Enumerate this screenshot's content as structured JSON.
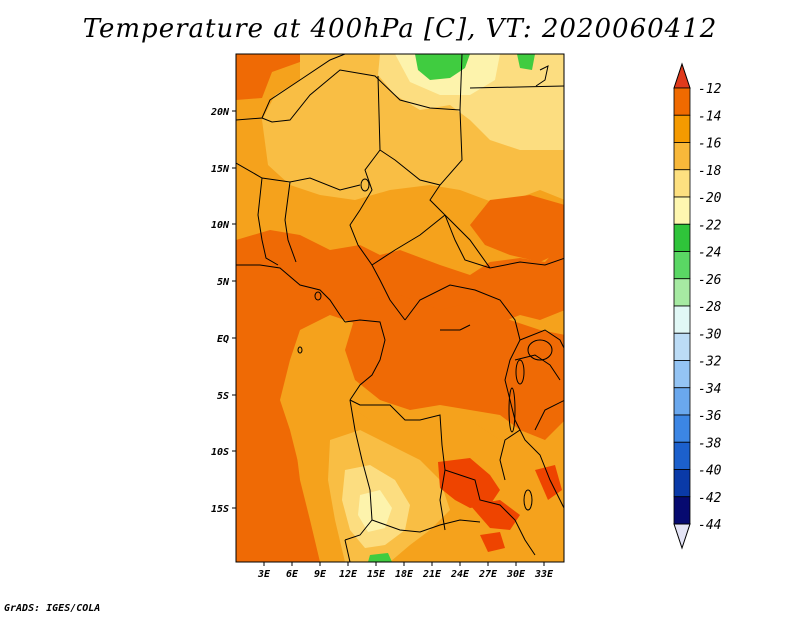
{
  "title": "Temperature at 400hPa [C], VT: 2020060412",
  "credit": "GrADS: IGES/COLA",
  "lon_labels": [
    "3E",
    "6E",
    "9E",
    "12E",
    "15E",
    "18E",
    "21E",
    "24E",
    "27E",
    "30E",
    "33E"
  ],
  "lat_labels": [
    "20N",
    "15N",
    "10N",
    "5N",
    "EQ",
    "5S",
    "10S",
    "15S"
  ],
  "colorbar": {
    "labels": [
      "-12",
      "-14",
      "-16",
      "-18",
      "-20",
      "-22",
      "-24",
      "-26",
      "-28",
      "-30",
      "-32",
      "-34",
      "-36",
      "-38",
      "-40",
      "-42",
      "-44"
    ],
    "colors": [
      "#ee4400",
      "#f06a00",
      "#f59a00",
      "#f8b83a",
      "#fde080",
      "#fef7b0",
      "#2fc43a",
      "#5ad764",
      "#a6eaa2",
      "#e1f8f6",
      "#bcdcf6",
      "#94c4f4",
      "#6aa8ee",
      "#3c86e4",
      "#1c60cc",
      "#0a3aa8",
      "#060a70"
    ],
    "max_arrow_color": "#e03a1c",
    "min_arrow_color": "#e4e4f6"
  },
  "map_colors": {
    "c14": "#ef6a05",
    "c16": "#f5a21c",
    "c18": "#f9be44",
    "c20": "#fcdd80",
    "c22": "#fdf3ac",
    "green": "#40cc40"
  }
}
